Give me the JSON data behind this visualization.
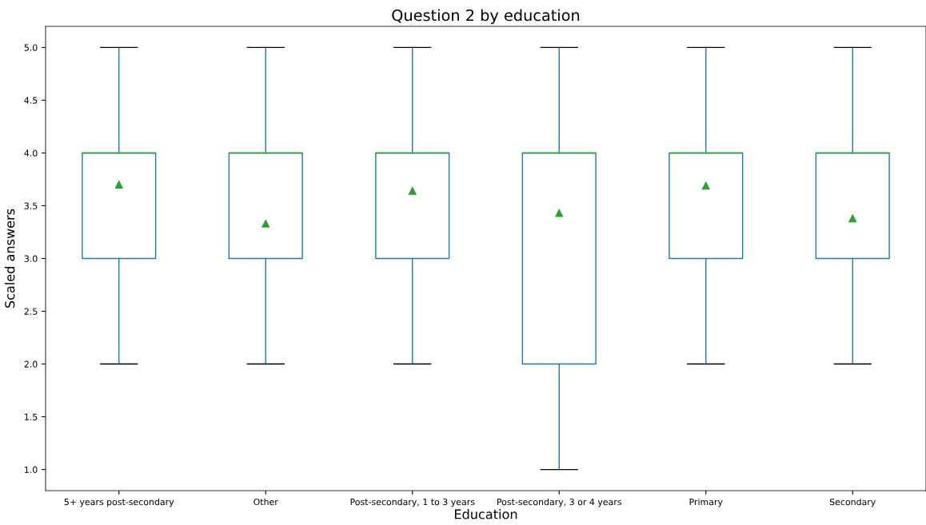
{
  "chart_data": {
    "type": "box",
    "title": "Question 2 by education",
    "xlabel": "Education",
    "ylabel": "Scaled answers",
    "categories": [
      "5+ years post-secondary",
      "Other",
      "Post-secondary, 1 to 3 years",
      "Post-secondary, 3 or 4 years",
      "Primary",
      "Secondary"
    ],
    "series": [
      {
        "color": "#1f77b4",
        "boxes": [
          {
            "low": 2,
            "q1": 3,
            "median": 4,
            "q3": 4,
            "high": 5,
            "mean": 3.7
          },
          {
            "low": 2,
            "q1": 3,
            "median": 4,
            "q3": 4,
            "high": 5,
            "mean": 3.33
          },
          {
            "low": 2,
            "q1": 3,
            "median": 4,
            "q3": 4,
            "high": 5,
            "mean": 3.64
          },
          {
            "low": 1,
            "q1": 2,
            "median": 4,
            "q3": 4,
            "high": 5,
            "mean": 3.43
          },
          {
            "low": 2,
            "q1": 3,
            "median": 4,
            "q3": 4,
            "high": 5,
            "mean": 3.69
          },
          {
            "low": 2,
            "q1": 3,
            "median": 4,
            "q3": 4,
            "high": 5,
            "mean": 3.38
          }
        ]
      }
    ],
    "ylim": [
      0.8,
      5.2
    ],
    "yticks": [
      {
        "value": 1,
        "label": "1.0"
      },
      1.5,
      {
        "value": 2,
        "label": "2.0"
      },
      2.5,
      {
        "value": 3,
        "label": "3.0"
      },
      3.5,
      {
        "value": 4,
        "label": "4.0"
      },
      4.5,
      {
        "value": 5,
        "label": "5.0"
      }
    ],
    "marker": "triangle",
    "grid": false
  }
}
